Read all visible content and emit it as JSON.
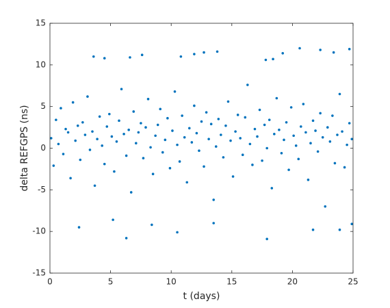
{
  "chart_data": {
    "type": "scatter",
    "xlabel": "t (days)",
    "ylabel": "delta REFGPS (ns)",
    "color": "#0072bd",
    "xlim": [
      0,
      25
    ],
    "ylim": [
      -15,
      15
    ],
    "xticks": [
      0,
      5,
      10,
      15,
      20,
      25
    ],
    "yticks": [
      -15,
      -10,
      -5,
      0,
      5,
      10,
      15
    ],
    "grid": false,
    "x": [
      0.1,
      0.3,
      0.5,
      0.7,
      0.9,
      1.1,
      1.3,
      1.5,
      1.7,
      1.9,
      2.1,
      2.3,
      2.5,
      2.7,
      2.9,
      3.1,
      3.3,
      3.5,
      3.7,
      3.9,
      4.1,
      4.3,
      4.5,
      4.7,
      4.9,
      5.1,
      5.3,
      5.5,
      5.7,
      5.9,
      6.1,
      6.3,
      6.5,
      6.7,
      6.9,
      7.1,
      7.3,
      7.5,
      7.7,
      7.9,
      8.1,
      8.3,
      8.5,
      8.7,
      8.9,
      9.1,
      9.3,
      9.5,
      9.7,
      9.9,
      10.1,
      10.3,
      10.5,
      10.7,
      10.9,
      11.1,
      11.3,
      11.5,
      11.7,
      11.9,
      12.1,
      12.3,
      12.5,
      12.7,
      12.9,
      13.1,
      13.3,
      13.5,
      13.7,
      13.9,
      14.1,
      14.3,
      14.5,
      14.7,
      14.9,
      15.1,
      15.3,
      15.5,
      15.7,
      15.9,
      16.1,
      16.3,
      16.5,
      16.7,
      16.9,
      17.1,
      17.3,
      17.5,
      17.7,
      17.9,
      18.1,
      18.3,
      18.5,
      18.7,
      18.9,
      19.1,
      19.3,
      19.5,
      19.7,
      19.9,
      20.1,
      20.3,
      20.5,
      20.7,
      20.9,
      21.1,
      21.3,
      21.5,
      21.7,
      21.9,
      22.1,
      22.3,
      22.5,
      22.7,
      22.9,
      23.1,
      23.3,
      23.5,
      23.7,
      23.9,
      24.1,
      24.3,
      24.5,
      24.7,
      24.9,
      20.6,
      22.3,
      23.4,
      24.7,
      12.7,
      13.8,
      3.6,
      4.5,
      7.6,
      6.6,
      10.8,
      11.9,
      19.2,
      17.8,
      18.4,
      6.3,
      10.5,
      17.9,
      21.7,
      23.9,
      2.4,
      24.9,
      5.2,
      8.4,
      13.5
    ],
    "values": [
      1.2,
      -2.1,
      3.4,
      0.5,
      4.8,
      -0.7,
      2.3,
      1.9,
      -3.6,
      5.5,
      0.9,
      2.7,
      -1.4,
      3.1,
      1.6,
      6.2,
      -0.2,
      2.0,
      -4.5,
      1.1,
      3.8,
      0.3,
      -1.9,
      2.6,
      4.1,
      1.4,
      -2.8,
      0.8,
      3.3,
      7.1,
      1.7,
      -0.9,
      2.2,
      -5.3,
      4.4,
      0.6,
      1.9,
      3.0,
      -1.2,
      2.5,
      5.9,
      0.1,
      -3.1,
      1.5,
      2.8,
      4.7,
      -0.5,
      1.0,
      3.6,
      -2.4,
      2.1,
      6.8,
      0.4,
      -1.6,
      3.9,
      1.3,
      -4.1,
      2.4,
      0.7,
      5.1,
      1.8,
      -0.3,
      3.2,
      -2.2,
      4.3,
      1.1,
      2.9,
      -6.2,
      0.2,
      3.5,
      1.6,
      -1.1,
      2.7,
      5.6,
      0.9,
      -3.4,
      2.0,
      4.0,
      1.2,
      -0.8,
      3.7,
      7.6,
      0.5,
      -2.0,
      2.3,
      1.4,
      4.6,
      -1.5,
      2.8,
      0.0,
      3.4,
      -4.8,
      1.7,
      6.0,
      2.2,
      -0.6,
      1.0,
      3.1,
      -2.6,
      4.9,
      1.5,
      0.3,
      -1.3,
      2.6,
      5.3,
      1.9,
      -3.8,
      0.6,
      3.3,
      2.1,
      -0.4,
      4.2,
      1.3,
      -7.0,
      2.5,
      0.8,
      3.9,
      -1.8,
      1.6,
      6.5,
      2.0,
      -2.3,
      0.4,
      3.0,
      1.1,
      12.0,
      11.8,
      11.5,
      11.9,
      11.5,
      11.6,
      11.0,
      10.8,
      11.2,
      10.9,
      11.0,
      11.3,
      11.4,
      10.6,
      10.7,
      -10.8,
      -10.1,
      -10.9,
      -9.8,
      -9.8,
      -9.5,
      -9.1,
      -8.6,
      -9.2,
      -9.0
    ]
  }
}
